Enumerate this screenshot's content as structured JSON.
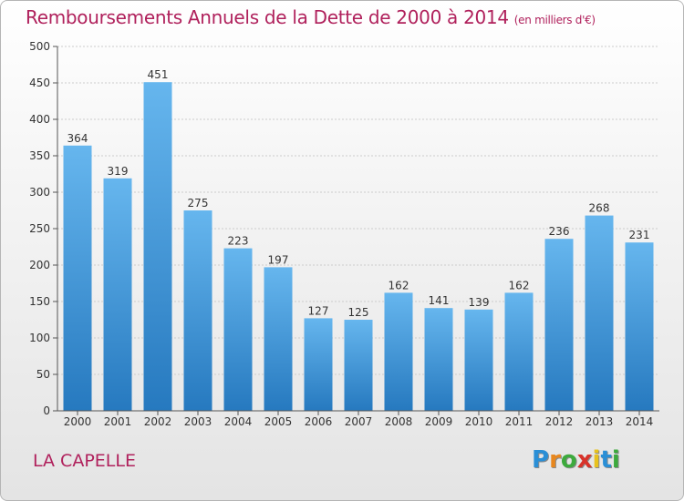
{
  "title": "Remboursements Annuels de la Dette de 2000 à 2014",
  "subtitle": "(en milliers d'€)",
  "commune": "LA CAPELLE",
  "logo": {
    "text": "Proxiti",
    "letters": [
      "P",
      "r",
      "o",
      "x",
      "i",
      "t",
      "i"
    ],
    "colors": [
      "#2a8fd6",
      "#e8871e",
      "#3daa3d",
      "#d8332a",
      "#e8c21e",
      "#2a8fd6",
      "#3daa3d"
    ]
  },
  "colors": {
    "bar_top": "#66b6ee",
    "bar_bottom": "#2679bf",
    "title": "#b0215c",
    "grid": "#cccccc"
  },
  "chart_data": {
    "type": "bar",
    "categories": [
      "2000",
      "2001",
      "2002",
      "2003",
      "2004",
      "2005",
      "2006",
      "2007",
      "2008",
      "2009",
      "2010",
      "2011",
      "2012",
      "2013",
      "2014"
    ],
    "values": [
      364,
      319,
      451,
      275,
      223,
      197,
      127,
      125,
      162,
      141,
      139,
      162,
      236,
      268,
      231
    ],
    "ylim": [
      0,
      500
    ],
    "yticks": [
      0,
      50,
      100,
      150,
      200,
      250,
      300,
      350,
      400,
      450,
      500
    ],
    "grid": true,
    "legend": "none"
  }
}
